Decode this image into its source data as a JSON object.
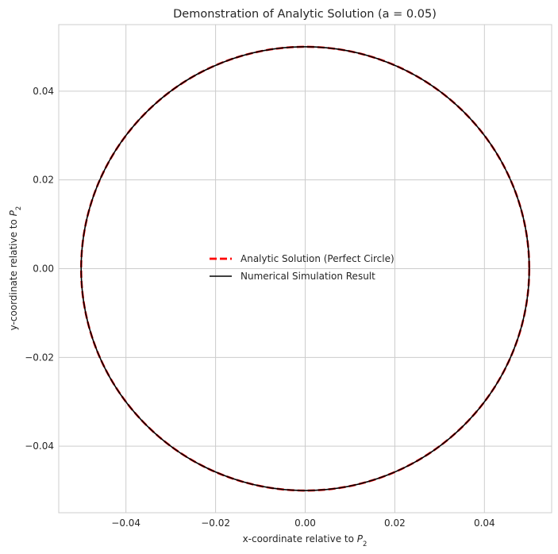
{
  "chart_data": {
    "type": "line",
    "title": "Demonstration of Analytic Solution (a = 0.05)",
    "xlabel": {
      "text": "x-coordinate relative to ",
      "sym": "P",
      "sub": "2"
    },
    "ylabel": {
      "text": "y-coordinate relative to ",
      "sym": "P",
      "sub": "2"
    },
    "xlim": [
      -0.055,
      0.055
    ],
    "ylim": [
      -0.055,
      0.055
    ],
    "xticks": [
      -0.04,
      -0.02,
      0.0,
      0.02,
      0.04
    ],
    "yticks": [
      -0.04,
      -0.02,
      0.0,
      0.02,
      0.04
    ],
    "xtick_labels": [
      "−0.04",
      "−0.02",
      "0.00",
      "0.02",
      "0.04"
    ],
    "ytick_labels": [
      "−0.04",
      "−0.02",
      "0.00",
      "0.02",
      "0.04"
    ],
    "grid": true,
    "legend_position": "center",
    "series": [
      {
        "name": "Analytic Solution (Perfect Circle)",
        "shape": "circle",
        "center": [
          0,
          0
        ],
        "radius": 0.05,
        "color": "#ff0000",
        "style": "dashed"
      },
      {
        "name": "Numerical Simulation Result",
        "shape": "circle",
        "center": [
          0,
          0
        ],
        "radius": 0.05,
        "color": "#000000",
        "style": "solid"
      }
    ]
  }
}
